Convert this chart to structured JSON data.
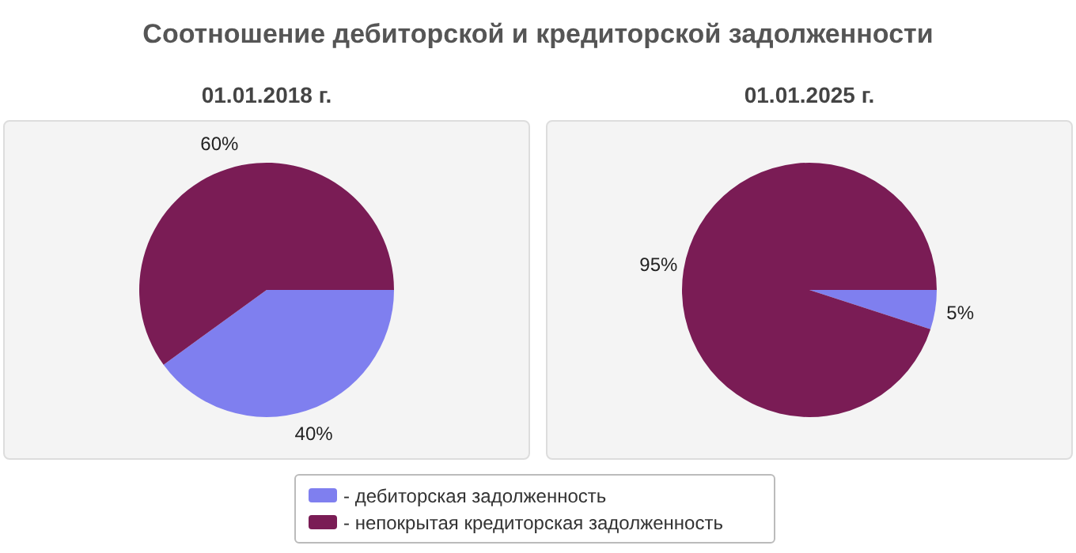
{
  "chart_data": [
    {
      "type": "pie",
      "title": "Соотношение дебиторской и кредиторской задолженности",
      "subtitle": "01.01.2018 г.",
      "categories": [
        "- дебиторская задолженность",
        "- непокрытая кредиторская задолженность"
      ],
      "values": [
        40,
        60
      ],
      "colors": [
        "#7f7fef",
        "#7a1c55"
      ],
      "value_labels": [
        "40%",
        "60%"
      ],
      "legend": "bottom"
    },
    {
      "type": "pie",
      "subtitle": "01.01.2025 г.",
      "categories": [
        null,
        null
      ],
      "values": [
        5,
        95
      ],
      "colors": [
        "#7f7fef",
        "#7a1c55"
      ],
      "value_labels": [
        "5%",
        "95%"
      ]
    }
  ]
}
